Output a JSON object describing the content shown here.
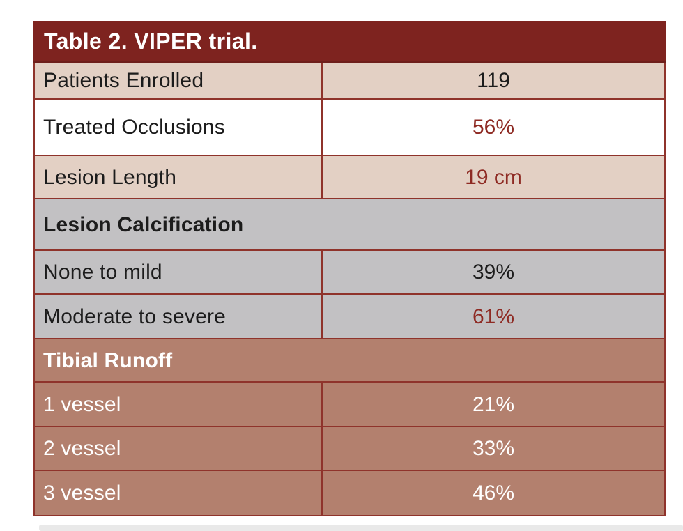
{
  "table": {
    "title": "Table 2. VIPER trial.",
    "rows": [
      {
        "type": "data",
        "label": "Patients Enrolled",
        "value": "119"
      },
      {
        "type": "data",
        "label": "Treated Occlusions",
        "value": "56%"
      },
      {
        "type": "data",
        "label": "Lesion Length",
        "value": "19 cm"
      },
      {
        "type": "section",
        "label": "Lesion Calcification"
      },
      {
        "type": "data",
        "label": "None to mild",
        "value": "39%"
      },
      {
        "type": "data",
        "label": "Moderate to severe",
        "value": "61%"
      },
      {
        "type": "section",
        "label": "Tibial Runoff"
      },
      {
        "type": "data",
        "label": "1 vessel",
        "value": "21%"
      },
      {
        "type": "data",
        "label": "2 vessel",
        "value": "33%"
      },
      {
        "type": "data",
        "label": "3 vessel",
        "value": "46%"
      }
    ],
    "colors": {
      "title_bg": "#7E231F",
      "row_pink": "#E3D0C4",
      "row_white": "#FFFFFF",
      "row_gray": "#C2C1C3",
      "row_terracotta": "#B3806E",
      "border": "#8F332B",
      "accent_value_text": "#8E2A23",
      "black_text": "#1C1C1C",
      "white_text": "#FFFFFF"
    }
  }
}
